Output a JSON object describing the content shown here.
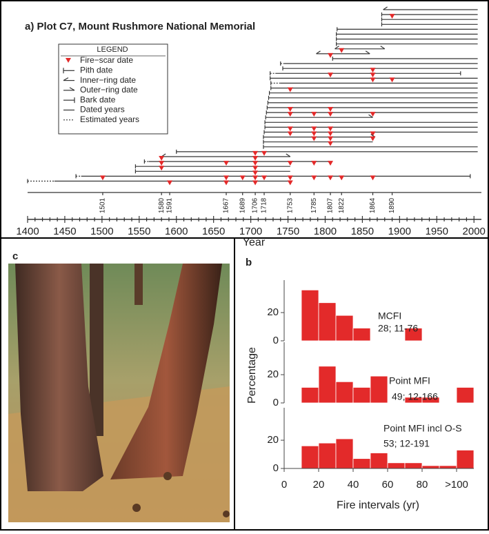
{
  "chart_data": [
    {
      "type": "timeline",
      "title": "a) Plot C7, Mount Rushmore National Memorial",
      "x_label": "Year",
      "xlim": [
        1400,
        2010
      ],
      "xticks": [
        1400,
        1450,
        1500,
        1550,
        1600,
        1650,
        1700,
        1750,
        1800,
        1850,
        1900,
        1950,
        2000
      ],
      "scar_color": "#e32a2a",
      "fire_years": [
        1501,
        1580,
        1591,
        1667,
        1689,
        1706,
        1718,
        1753,
        1785,
        1807,
        1822,
        1864,
        1890
      ],
      "legend": {
        "title": "LEGEND",
        "items": [
          "Fire−scar date",
          "Pith date",
          "Inner−ring date",
          "Outer−ring date",
          "Bark date",
          "Dated years",
          "Estimated years"
        ]
      },
      "records": [
        {
          "start": 1878,
          "end": 2005,
          "start_mark": "inner"
        },
        {
          "start": 1876,
          "end": 2005,
          "start_mark": "pith",
          "scars": [
            1890
          ]
        },
        {
          "start": 1876,
          "end": 2005,
          "start_mark": "pith"
        },
        {
          "start": 1876,
          "end": 2005,
          "start_mark": "pith"
        },
        {
          "start": 1816,
          "end": 2005,
          "start_mark": "pith"
        },
        {
          "start": 1815,
          "end": 2005,
          "start_mark": "pith"
        },
        {
          "start": 1815,
          "end": 2005,
          "start_mark": "pith"
        },
        {
          "start": 1815,
          "end": 2005,
          "start_mark": "pith"
        },
        {
          "start": 1813,
          "end": 1880,
          "start_mark": "inner",
          "end_mark": "outer",
          "scars": [
            1822
          ]
        },
        {
          "start": 1788,
          "end": 1860,
          "start_mark": "inner",
          "end_mark": "outer",
          "scars": [
            1807
          ]
        },
        {
          "start": 1810,
          "end": 2005,
          "start_mark": "pith"
        },
        {
          "start": 1740,
          "est_until": 1745,
          "end": 2005,
          "start_mark": "pith"
        },
        {
          "start": 1743,
          "end": 2005,
          "start_mark": "pith",
          "scars": [
            1864
          ]
        },
        {
          "start": 1726,
          "est_until": 1733,
          "end": 1982,
          "start_mark": "pith",
          "end_mark": "bark",
          "scars": [
            1807,
            1864
          ]
        },
        {
          "start": 1726,
          "end": 2005,
          "start_mark": "pith",
          "scars": [
            1864,
            1890
          ]
        },
        {
          "start": 1727,
          "est_until": 1740,
          "end": 2005,
          "start_mark": "pith"
        },
        {
          "start": 1727,
          "end": 2005,
          "start_mark": "pith",
          "scars": [
            1753
          ]
        },
        {
          "start": 1725,
          "end": 2005,
          "start_mark": "pith"
        },
        {
          "start": 1724,
          "end": 2005,
          "start_mark": "pith"
        },
        {
          "start": 1723,
          "end": 2005,
          "start_mark": "pith"
        },
        {
          "start": 1722,
          "end": 2005,
          "start_mark": "pith",
          "scars": [
            1753,
            1807
          ]
        },
        {
          "start": 1721,
          "end": 2005,
          "start_mark": "pith",
          "scars": [
            1753,
            1785,
            1807,
            1864
          ]
        },
        {
          "start": 1720,
          "end": 1864,
          "start_mark": "pith",
          "end_mark": "outer"
        },
        {
          "start": 1719,
          "end": 2005,
          "start_mark": "pith"
        },
        {
          "start": 1719,
          "end": 2005,
          "start_mark": "pith",
          "scars": [
            1753,
            1785,
            1807
          ]
        },
        {
          "start": 1718,
          "end": 2005,
          "start_mark": "pith",
          "scars": [
            1753,
            1785,
            1807,
            1864
          ]
        },
        {
          "start": 1717,
          "end": 1867,
          "start_mark": "pith",
          "end_mark": "outer",
          "scars": [
            1785,
            1807,
            1864
          ]
        },
        {
          "start": 1717,
          "end": 1864,
          "start_mark": "pith",
          "scars": [
            1807
          ]
        },
        {
          "start": 1717,
          "end": 2005,
          "start_mark": "pith"
        },
        {
          "start": 1600,
          "end": 2005,
          "start_mark": "pith",
          "scars": [
            1706,
            1718
          ]
        },
        {
          "start": 1580,
          "end": 1753,
          "start_mark": "inner",
          "end_mark": "outer",
          "scars": [
            1580,
            1706
          ]
        },
        {
          "start": 1557,
          "est_until": 1563,
          "end": 1807,
          "start_mark": "pith",
          "scars": [
            1580,
            1667,
            1706,
            1753,
            1785,
            1807
          ]
        },
        {
          "start": 1545,
          "end": 1753,
          "start_mark": "pith",
          "scars": [
            1580,
            1706
          ]
        },
        {
          "start": 1545,
          "end": 1753,
          "start_mark": "pith",
          "scars": [
            1706
          ]
        },
        {
          "start": 1465,
          "est_until": 1472,
          "end": 1995,
          "start_mark": "pith",
          "end_mark": "bark",
          "scars": [
            1501,
            1667,
            1689,
            1706,
            1718,
            1753,
            1785,
            1807,
            1822,
            1864
          ]
        },
        {
          "start": 1400,
          "est_until": 1436,
          "end": 1753,
          "start_mark": "pith",
          "scars": [
            1591,
            1667,
            1706,
            1753
          ]
        }
      ]
    },
    {
      "type": "histogram",
      "panel_label": "b",
      "annotations": [
        "MCFI",
        "28; 11-76"
      ],
      "color": "#e32a2a",
      "bins": [
        10,
        20,
        30,
        40,
        50,
        60,
        70,
        80,
        90,
        100,
        110
      ],
      "values": [
        36,
        27,
        18,
        9,
        0,
        0,
        9,
        0,
        0,
        0
      ],
      "xlim": [
        0,
        110
      ],
      "ylim": [
        0,
        43
      ],
      "yticks": [
        0,
        20
      ]
    },
    {
      "type": "histogram",
      "annotations": [
        "Point MFI",
        "49; 12-166"
      ],
      "color": "#e32a2a",
      "y_label": "Percentage",
      "bins": [
        10,
        20,
        30,
        40,
        50,
        60,
        70,
        80,
        90,
        100,
        110
      ],
      "values": [
        11,
        26,
        15,
        11,
        19,
        0,
        4,
        4,
        0,
        11
      ],
      "xlim": [
        0,
        110
      ],
      "ylim": [
        0,
        43
      ],
      "yticks": [
        0,
        20
      ]
    },
    {
      "type": "histogram",
      "annotations": [
        "Point MFI incl O-S",
        "53; 12-191"
      ],
      "color": "#e32a2a",
      "x_label": "Fire intervals (yr)",
      "bins": [
        10,
        20,
        30,
        40,
        50,
        60,
        70,
        80,
        90,
        100,
        110
      ],
      "values": [
        16,
        18,
        21,
        7,
        11,
        4,
        4,
        2,
        2,
        13
      ],
      "xlim": [
        0,
        110
      ],
      "ylim": [
        0,
        43
      ],
      "yticks": [
        0,
        20
      ],
      "xticks": [
        0,
        20,
        40,
        60,
        80,
        {
          "value": 100,
          "label": ">100"
        }
      ]
    }
  ],
  "photo": {
    "label": "c"
  }
}
